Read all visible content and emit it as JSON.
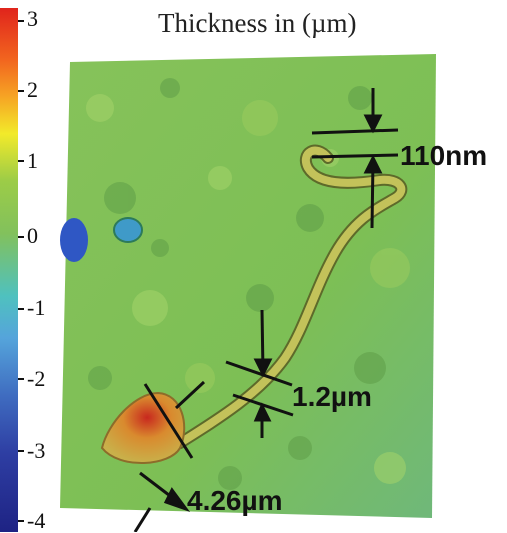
{
  "title": "Thickness in (µm)",
  "colorbar": {
    "ticks": [
      "3",
      "2",
      "1",
      "0",
      "-1",
      "-2",
      "-3",
      "-4"
    ]
  },
  "annotations": {
    "thickness": "110nm",
    "width": "1.2µm",
    "head": "4.26µm"
  },
  "colors": {
    "surface": "#7ec25a",
    "surface_dark": "#5f9e48",
    "fiber": "#b8b64a",
    "head_red": "#c8281e",
    "head_orange": "#d98a2e",
    "pit_blue": "#2f57c4"
  }
}
